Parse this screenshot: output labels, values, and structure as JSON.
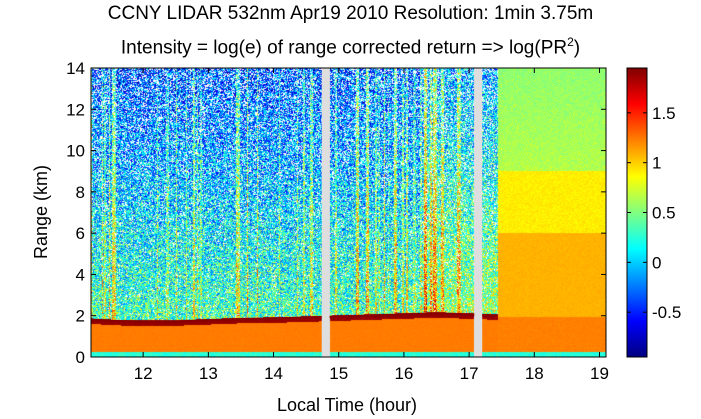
{
  "chart_data": {
    "type": "heatmap",
    "title_line1": "CCNY LIDAR 532nm Apr19 2010 Resolution: 1min 3.75m",
    "title_line2_prefix": "Intensity = log(e) of range corrected return => log(PR",
    "title_line2_superscript": "2",
    "title_line2_suffix": ")",
    "xlabel": "Local Time (hour)",
    "ylabel": "Range (km)",
    "xlim": [
      11.2,
      19.1
    ],
    "ylim": [
      0,
      14
    ],
    "x_ticks": [
      12,
      13,
      14,
      15,
      16,
      17,
      18,
      19
    ],
    "x_tick_labels": [
      "12",
      "13",
      "14",
      "15",
      "16",
      "17",
      "18",
      "19"
    ],
    "y_ticks": [
      0,
      2,
      4,
      6,
      8,
      10,
      12,
      14
    ],
    "y_tick_labels": [
      "0",
      "2",
      "4",
      "6",
      "8",
      "10",
      "12",
      "14"
    ],
    "colorbar": {
      "colormap": "jet",
      "clim": [
        -0.95,
        1.95
      ],
      "ticks": [
        -0.5,
        0,
        0.5,
        1,
        1.5
      ],
      "tick_labels": [
        "-0.5",
        "0",
        "0.5",
        "1",
        "1.5"
      ]
    },
    "boundary_layer_top_km": [
      [
        11.2,
        1.75
      ],
      [
        11.6,
        1.68
      ],
      [
        12.0,
        1.65
      ],
      [
        12.5,
        1.66
      ],
      [
        13.0,
        1.72
      ],
      [
        13.5,
        1.78
      ],
      [
        14.0,
        1.8
      ],
      [
        14.5,
        1.85
      ],
      [
        15.0,
        1.9
      ],
      [
        15.5,
        1.95
      ],
      [
        16.0,
        2.0
      ],
      [
        16.5,
        2.05
      ],
      [
        17.0,
        2.0
      ],
      [
        17.4,
        1.95
      ]
    ],
    "data_gaps_hours": [
      [
        14.74,
        14.86
      ],
      [
        17.08,
        17.2
      ]
    ]
  }
}
